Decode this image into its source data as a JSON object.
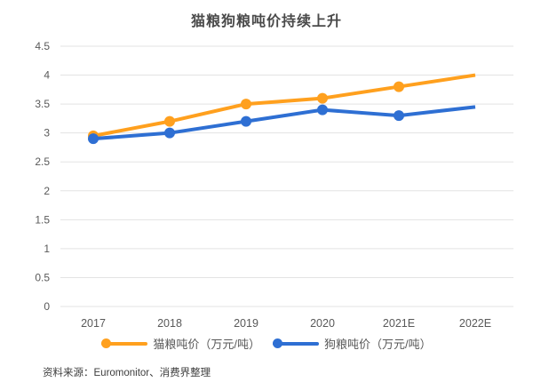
{
  "chart_data": {
    "type": "line",
    "title": "猫粮狗粮吨价持续上升",
    "categories": [
      "2017",
      "2018",
      "2019",
      "2020",
      "2021E",
      "2022E"
    ],
    "series": [
      {
        "name": "猫粮吨价（万元/吨）",
        "color": "#FFA01E",
        "values": [
          2.95,
          3.2,
          3.5,
          3.6,
          3.8,
          4.0
        ]
      },
      {
        "name": "狗粮吨价（万元/吨）",
        "color": "#2E6FD3",
        "values": [
          2.9,
          3.0,
          3.2,
          3.4,
          3.3,
          3.45
        ]
      }
    ],
    "xlabel": "",
    "ylabel": "",
    "ylim": [
      0,
      4.5
    ],
    "ytick_step": 0.5,
    "grid": true,
    "legend_position": "bottom",
    "markers_on_last_point": false
  },
  "source_note": "资料来源：Euromonitor、消费界整理",
  "colors": {
    "grid_line": "#e3e3e3",
    "axis_text": "#595959",
    "title_text": "#4a4a4a",
    "source_text": "#3d3d3d"
  }
}
